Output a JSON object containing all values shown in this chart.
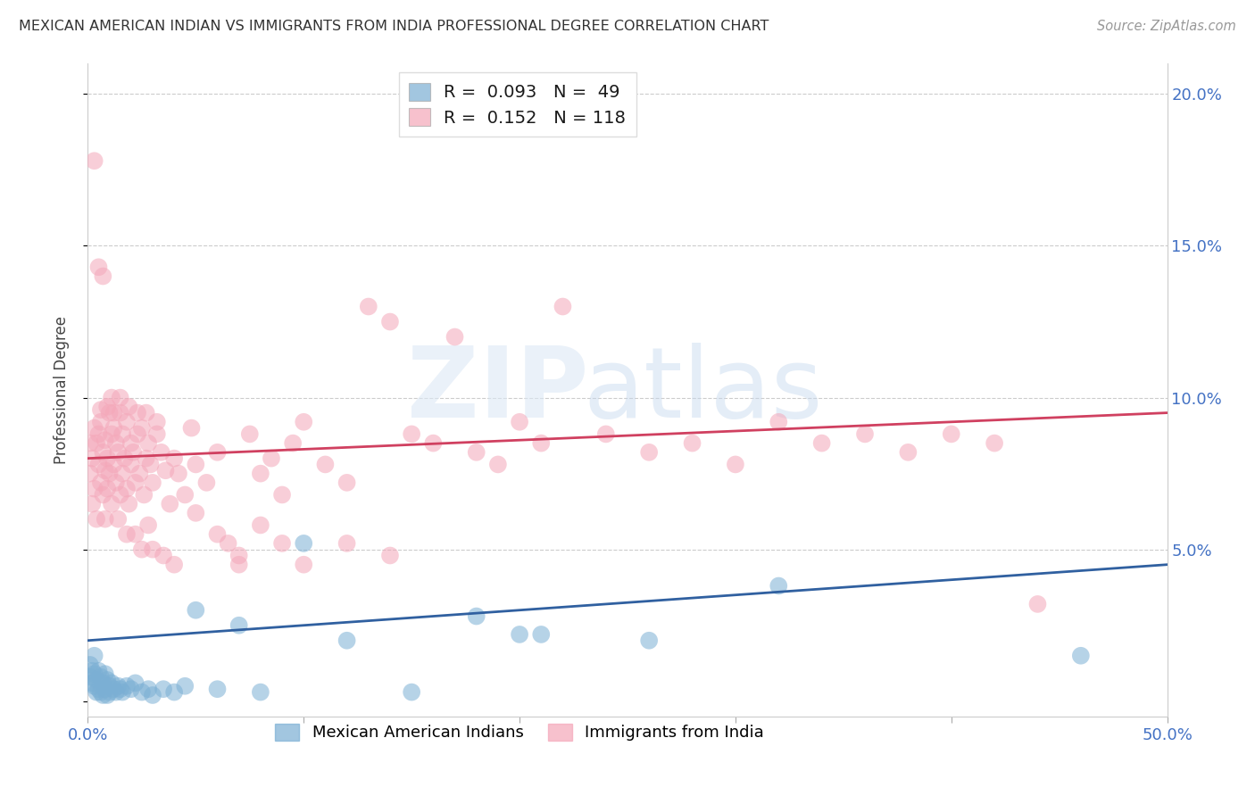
{
  "title": "MEXICAN AMERICAN INDIAN VS IMMIGRANTS FROM INDIA PROFESSIONAL DEGREE CORRELATION CHART",
  "source": "Source: ZipAtlas.com",
  "ylabel": "Professional Degree",
  "xlim": [
    0,
    0.5
  ],
  "ylim": [
    -0.005,
    0.21
  ],
  "R_blue": 0.093,
  "N_blue": 49,
  "R_pink": 0.152,
  "N_pink": 118,
  "blue_color": "#7bafd4",
  "pink_color": "#f4a7b9",
  "blue_line_color": "#3060a0",
  "pink_line_color": "#d04060",
  "blue_scatter_x": [
    0.001,
    0.001,
    0.002,
    0.002,
    0.003,
    0.003,
    0.003,
    0.004,
    0.004,
    0.005,
    0.005,
    0.006,
    0.006,
    0.007,
    0.007,
    0.008,
    0.008,
    0.009,
    0.009,
    0.01,
    0.01,
    0.011,
    0.012,
    0.013,
    0.014,
    0.015,
    0.016,
    0.018,
    0.02,
    0.022,
    0.025,
    0.028,
    0.03,
    0.035,
    0.04,
    0.045,
    0.05,
    0.06,
    0.07,
    0.08,
    0.1,
    0.12,
    0.15,
    0.18,
    0.2,
    0.21,
    0.26,
    0.32,
    0.46
  ],
  "blue_scatter_y": [
    0.012,
    0.008,
    0.01,
    0.006,
    0.009,
    0.005,
    0.015,
    0.007,
    0.003,
    0.01,
    0.004,
    0.008,
    0.003,
    0.006,
    0.002,
    0.009,
    0.004,
    0.007,
    0.002,
    0.005,
    0.003,
    0.006,
    0.004,
    0.003,
    0.005,
    0.004,
    0.003,
    0.005,
    0.004,
    0.006,
    0.003,
    0.004,
    0.002,
    0.004,
    0.003,
    0.005,
    0.03,
    0.004,
    0.025,
    0.003,
    0.052,
    0.02,
    0.003,
    0.028,
    0.022,
    0.022,
    0.02,
    0.038,
    0.015
  ],
  "pink_scatter_x": [
    0.001,
    0.001,
    0.002,
    0.002,
    0.003,
    0.003,
    0.004,
    0.004,
    0.005,
    0.005,
    0.006,
    0.006,
    0.007,
    0.007,
    0.008,
    0.008,
    0.009,
    0.009,
    0.01,
    0.01,
    0.011,
    0.011,
    0.012,
    0.012,
    0.013,
    0.013,
    0.014,
    0.015,
    0.015,
    0.016,
    0.016,
    0.017,
    0.018,
    0.018,
    0.019,
    0.02,
    0.02,
    0.021,
    0.022,
    0.023,
    0.024,
    0.025,
    0.026,
    0.027,
    0.028,
    0.029,
    0.03,
    0.032,
    0.034,
    0.036,
    0.038,
    0.04,
    0.042,
    0.045,
    0.048,
    0.05,
    0.055,
    0.06,
    0.065,
    0.07,
    0.075,
    0.08,
    0.085,
    0.09,
    0.095,
    0.1,
    0.11,
    0.12,
    0.13,
    0.14,
    0.15,
    0.16,
    0.17,
    0.18,
    0.19,
    0.2,
    0.21,
    0.22,
    0.24,
    0.26,
    0.28,
    0.3,
    0.32,
    0.34,
    0.36,
    0.38,
    0.4,
    0.42,
    0.44,
    0.03,
    0.04,
    0.008,
    0.012,
    0.018,
    0.025,
    0.006,
    0.014,
    0.022,
    0.035,
    0.028,
    0.05,
    0.06,
    0.07,
    0.08,
    0.09,
    0.1,
    0.12,
    0.14,
    0.003,
    0.005,
    0.007,
    0.009,
    0.011,
    0.015,
    0.019,
    0.023,
    0.027,
    0.032
  ],
  "pink_scatter_y": [
    0.075,
    0.085,
    0.08,
    0.065,
    0.09,
    0.07,
    0.085,
    0.06,
    0.078,
    0.088,
    0.072,
    0.092,
    0.068,
    0.082,
    0.076,
    0.086,
    0.07,
    0.08,
    0.095,
    0.075,
    0.088,
    0.065,
    0.09,
    0.078,
    0.085,
    0.072,
    0.082,
    0.095,
    0.068,
    0.088,
    0.075,
    0.08,
    0.07,
    0.092,
    0.065,
    0.085,
    0.078,
    0.082,
    0.072,
    0.088,
    0.075,
    0.09,
    0.068,
    0.08,
    0.085,
    0.078,
    0.072,
    0.088,
    0.082,
    0.076,
    0.065,
    0.08,
    0.075,
    0.068,
    0.09,
    0.078,
    0.072,
    0.082,
    0.052,
    0.045,
    0.088,
    0.075,
    0.08,
    0.068,
    0.085,
    0.092,
    0.078,
    0.072,
    0.13,
    0.125,
    0.088,
    0.085,
    0.12,
    0.082,
    0.078,
    0.092,
    0.085,
    0.13,
    0.088,
    0.082,
    0.085,
    0.078,
    0.092,
    0.085,
    0.088,
    0.082,
    0.088,
    0.085,
    0.032,
    0.05,
    0.045,
    0.06,
    0.095,
    0.055,
    0.05,
    0.096,
    0.06,
    0.055,
    0.048,
    0.058,
    0.062,
    0.055,
    0.048,
    0.058,
    0.052,
    0.045,
    0.052,
    0.048,
    0.178,
    0.143,
    0.14,
    0.097,
    0.1,
    0.1,
    0.097,
    0.095,
    0.095,
    0.092
  ]
}
